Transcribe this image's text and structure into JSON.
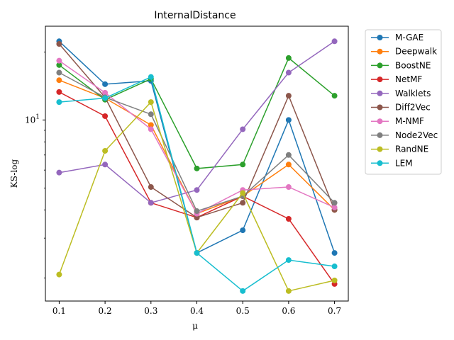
{
  "chart_data": {
    "type": "line",
    "title": "InternalDistance",
    "xlabel": "μ",
    "ylabel": "KS-log",
    "yscale": "log",
    "x": [
      0.1,
      0.2,
      0.3,
      0.4,
      0.5,
      0.6,
      0.7
    ],
    "xticks": [
      "0.1",
      "0.2",
      "0.3",
      "0.4",
      "0.5",
      "0.6",
      "0.7"
    ],
    "yticks": [
      {
        "value": 10,
        "base": "10",
        "exp": "1"
      }
    ],
    "legend_position": "upper-right-outside",
    "grid": false,
    "series": [
      {
        "name": "M-GAE",
        "color": "#1f77b4",
        "values": [
          22.3,
          14.4,
          14.9,
          2.58,
          3.25,
          10.0,
          2.58
        ]
      },
      {
        "name": "Deepwalk",
        "color": "#ff7f0e",
        "values": [
          15.0,
          12.5,
          9.5,
          3.85,
          4.6,
          6.35,
          4.0
        ]
      },
      {
        "name": "BoostNE",
        "color": "#2ca02c",
        "values": [
          17.5,
          12.3,
          15.2,
          6.1,
          6.35,
          18.8,
          12.8
        ]
      },
      {
        "name": "NetMF",
        "color": "#d62728",
        "values": [
          13.3,
          10.4,
          4.3,
          3.7,
          4.6,
          3.65,
          1.88
        ]
      },
      {
        "name": "Walklets",
        "color": "#9467bd",
        "values": [
          5.85,
          6.35,
          4.3,
          4.9,
          9.1,
          16.2,
          22.3
        ]
      },
      {
        "name": "Diff2Vec",
        "color": "#8c564b",
        "values": [
          21.7,
          12.6,
          5.05,
          3.7,
          4.3,
          12.8,
          4.0
        ]
      },
      {
        "name": "M-NMF",
        "color": "#e377c2",
        "values": [
          18.3,
          13.2,
          9.1,
          3.85,
          4.9,
          5.05,
          4.1
        ]
      },
      {
        "name": "Node2Vec",
        "color": "#7f7f7f",
        "values": [
          16.2,
          12.6,
          10.6,
          3.95,
          4.6,
          7.0,
          4.3
        ]
      },
      {
        "name": "RandNE",
        "color": "#bcbd22",
        "values": [
          2.07,
          7.3,
          12.0,
          2.58,
          4.75,
          1.75,
          1.95
        ]
      },
      {
        "name": "LEM",
        "color": "#17becf",
        "values": [
          12.0,
          12.5,
          15.5,
          2.58,
          1.75,
          2.4,
          2.25
        ]
      }
    ]
  }
}
